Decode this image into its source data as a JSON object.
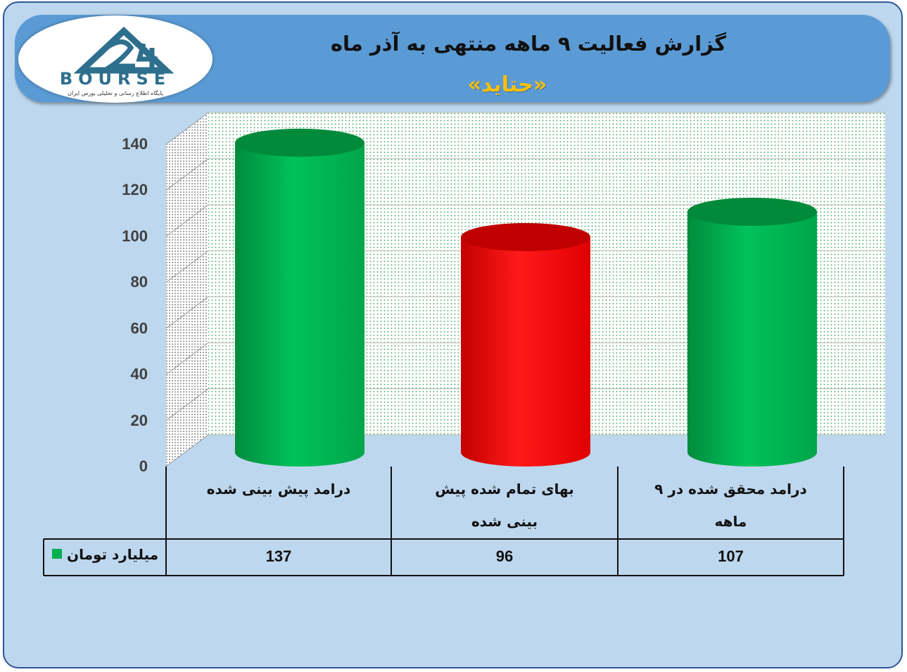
{
  "header": {
    "title": "گزارش فعالیت ۹ ماهه منتهی به آذر ماه",
    "subtitle": "«حتاید»"
  },
  "logo": {
    "wordmark": "BOURSE",
    "caption": "پایگاه اطلاع رسانی و تحلیلی بورس ایران",
    "icon": "mountain-24-logo-icon"
  },
  "colors": {
    "frame_bg": "#bdd7ee",
    "header_bg": "#5b9bd5",
    "title_accent": "#ffc000",
    "green": "#00b050",
    "red": "#ff0000"
  },
  "chart_data": {
    "type": "bar",
    "style": "3d-cylinder",
    "categories": [
      "درامد پیش بینی شده",
      "بهای تمام شده پیش بینی شده",
      "درامد محقق شده در ۹ ماهه"
    ],
    "category_lines": [
      [
        "درامد پیش بینی شده"
      ],
      [
        "بهای تمام شده پیش",
        "بینی شده"
      ],
      [
        "درامد محقق شده در ۹",
        "ماهه"
      ]
    ],
    "series": [
      {
        "name": "میلیارد تومان",
        "values": [
          137,
          96,
          107
        ],
        "bar_colors": [
          "#00b050",
          "#ff0000",
          "#00b050"
        ]
      }
    ],
    "value_labels": [
      "137",
      "96",
      "107"
    ],
    "ylim": [
      0,
      140
    ],
    "yticks": [
      "0",
      "20",
      "40",
      "60",
      "80",
      "100",
      "120",
      "140"
    ],
    "grid": true,
    "legend": "data-table"
  }
}
